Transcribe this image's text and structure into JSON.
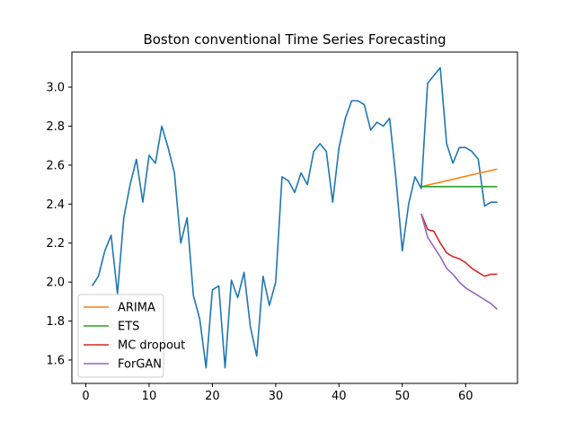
{
  "chart_data": {
    "type": "line",
    "title": "Boston conventional Time Series Forecasting",
    "xlabel": "",
    "ylabel": "",
    "xlim": [
      -2.2,
      68.2
    ],
    "ylim": [
      1.48,
      3.18
    ],
    "xticks": [
      0,
      10,
      20,
      30,
      40,
      50,
      60
    ],
    "yticks": [
      1.6,
      1.8,
      2.0,
      2.2,
      2.4,
      2.6,
      2.8,
      3.0
    ],
    "ytick_format": 1,
    "grid": false,
    "legend_position": "lower-left",
    "series": [
      {
        "color": "#1f77b4",
        "x": [
          1,
          2,
          3,
          4,
          5,
          6,
          7,
          8,
          9,
          10,
          11,
          12,
          13,
          14,
          15,
          16,
          17,
          18,
          19,
          20,
          21,
          22,
          23,
          24,
          25,
          26,
          27,
          28,
          29,
          30,
          31,
          32,
          33,
          34,
          35,
          36,
          37,
          38,
          39,
          40,
          41,
          42,
          43,
          44,
          45,
          46,
          47,
          48,
          49,
          50,
          51,
          52,
          53,
          54,
          55,
          56,
          57,
          58,
          59,
          60,
          61,
          62,
          63,
          64,
          65
        ],
        "values": [
          1.98,
          2.03,
          2.16,
          2.24,
          1.94,
          2.33,
          2.5,
          2.63,
          2.41,
          2.65,
          2.61,
          2.8,
          2.69,
          2.56,
          2.2,
          2.33,
          1.93,
          1.81,
          1.56,
          1.96,
          1.98,
          1.56,
          2.01,
          1.92,
          2.05,
          1.77,
          1.62,
          2.03,
          1.88,
          2.0,
          2.54,
          2.52,
          2.46,
          2.56,
          2.5,
          2.67,
          2.71,
          2.67,
          2.41,
          2.69,
          2.84,
          2.93,
          2.93,
          2.91,
          2.78,
          2.82,
          2.8,
          2.84,
          2.53,
          2.16,
          2.4,
          2.54,
          2.48,
          3.02,
          3.06,
          3.1,
          2.71,
          2.61,
          2.69,
          2.69,
          2.67,
          2.63,
          2.39,
          2.41,
          2.41
        ]
      },
      {
        "name": "ARIMA",
        "color": "#ff7f0e",
        "x": [
          53,
          65
        ],
        "values": [
          2.49,
          2.58
        ]
      },
      {
        "name": "ETS",
        "color": "#2ca02c",
        "x": [
          53,
          65
        ],
        "values": [
          2.49,
          2.49
        ]
      },
      {
        "name": "MC dropout",
        "color": "#d62728",
        "x": [
          53,
          54,
          55,
          56,
          57,
          58,
          59,
          60,
          61,
          62,
          63,
          64,
          65
        ],
        "values": [
          2.35,
          2.27,
          2.26,
          2.2,
          2.15,
          2.13,
          2.12,
          2.1,
          2.07,
          2.05,
          2.03,
          2.04,
          2.04
        ]
      },
      {
        "name": "ForGAN",
        "color": "#9467bd",
        "x": [
          53,
          54,
          55,
          56,
          57,
          58,
          59,
          60,
          61,
          62,
          63,
          64,
          65
        ],
        "values": [
          2.35,
          2.23,
          2.18,
          2.13,
          2.07,
          2.04,
          2.0,
          1.97,
          1.95,
          1.93,
          1.91,
          1.89,
          1.86
        ]
      }
    ]
  }
}
